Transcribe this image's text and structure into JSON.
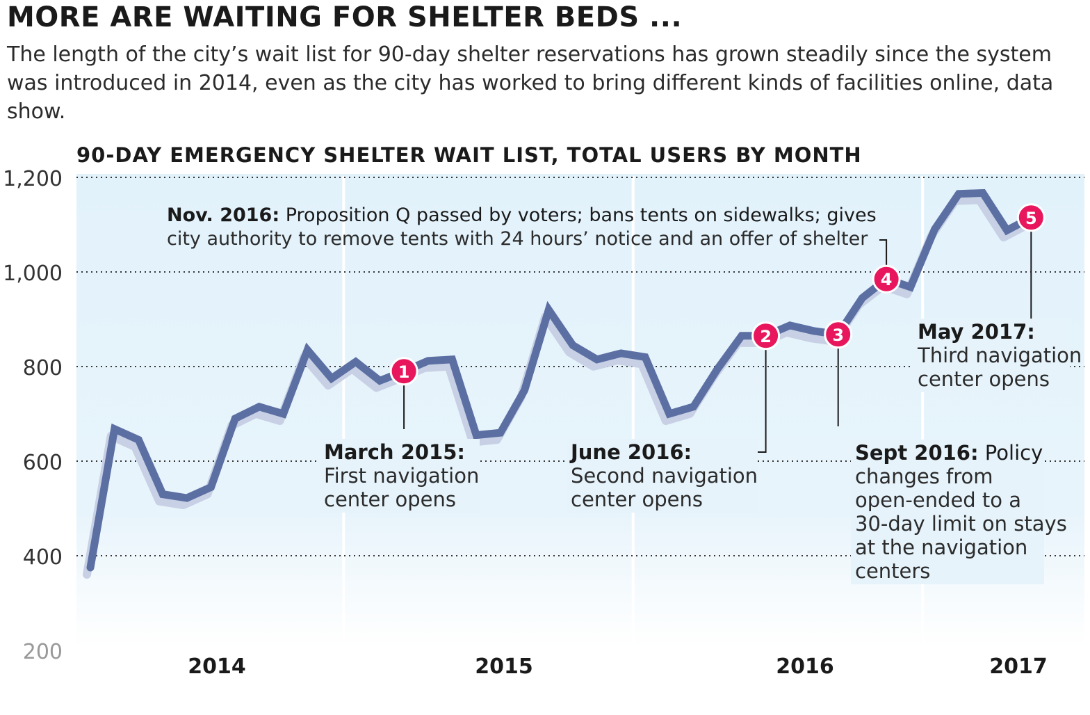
{
  "headline": "MORE ARE WAITING FOR SHELTER BEDS ...",
  "subhead": "The length of the city’s wait list for 90-day shelter reservations has grown steadily since the system was introduced in 2014, even as the city has worked to bring different kinds of facilities online, data show.",
  "colors": {
    "line": "#5c6fa3",
    "shadow": "#c7d0e4",
    "marker": "#e8175d",
    "background": "#e3f2fb"
  },
  "chart_data": {
    "type": "line",
    "title": "90-DAY EMERGENCY SHELTER WAIT LIST, TOTAL USERS BY MONTH",
    "xlabel": "",
    "ylabel": "",
    "ylim": [
      200,
      1200
    ],
    "yticks": [
      "1,200",
      "1,000",
      "800",
      "600",
      "400",
      "200"
    ],
    "ytick_values": [
      1200,
      1000,
      800,
      600,
      400,
      200
    ],
    "year_labels": [
      "2014",
      "2015",
      "2016",
      "2017"
    ],
    "year_start_index": [
      0,
      11,
      23,
      35
    ],
    "x_start": "2014-02",
    "months": [
      "Feb 2014",
      "Mar 2014",
      "Apr 2014",
      "May 2014",
      "Jun 2014",
      "Jul 2014",
      "Aug 2014",
      "Sep 2014",
      "Oct 2014",
      "Nov 2014",
      "Dec 2014",
      "Jan 2015",
      "Feb 2015",
      "Mar 2015",
      "Apr 2015",
      "May 2015",
      "Jun 2015",
      "Jul 2015",
      "Aug 2015",
      "Sep 2015",
      "Oct 2015",
      "Nov 2015",
      "Dec 2015",
      "Jan 2016",
      "Feb 2016",
      "Mar 2016",
      "Apr 2016",
      "May 2016",
      "Jun 2016",
      "Jul 2016",
      "Aug 2016",
      "Sep 2016",
      "Oct 2016",
      "Nov 2016",
      "Dec 2016",
      "Jan 2017",
      "Feb 2017",
      "Mar 2017",
      "Apr 2017",
      "May 2017"
    ],
    "values": [
      375,
      668,
      645,
      530,
      522,
      545,
      690,
      715,
      700,
      835,
      775,
      810,
      770,
      790,
      812,
      815,
      655,
      660,
      750,
      920,
      845,
      815,
      828,
      820,
      700,
      715,
      795,
      865,
      865,
      887,
      875,
      868,
      945,
      985,
      968,
      1090,
      1165,
      1167,
      1088,
      1115
    ],
    "events": [
      {
        "id": "1",
        "month_index": 13,
        "title": "March 2015:",
        "text": [
          "First navigation",
          "center opens"
        ]
      },
      {
        "id": "2",
        "month_index": 28,
        "title": "June 2016:",
        "text": [
          "Second navigation",
          "center opens"
        ]
      },
      {
        "id": "3",
        "month_index": 31,
        "title": "Sept 2016:",
        "first_line_rest": "Policy",
        "text": [
          "changes from",
          "open-ended to a",
          "30-day limit on stays",
          "at the navigation",
          "centers"
        ]
      },
      {
        "id": "4",
        "month_index": 33,
        "title": "Nov. 2016:",
        "first_line_rest": "Proposition Q passed by voters; bans tents on sidewalks; gives",
        "text": [
          "city authority to remove tents with 24 hours’ notice and an offer of shelter"
        ]
      },
      {
        "id": "5",
        "month_index": 39,
        "title": "May 2017:",
        "text": [
          "Third navigation",
          "center opens"
        ]
      }
    ]
  }
}
